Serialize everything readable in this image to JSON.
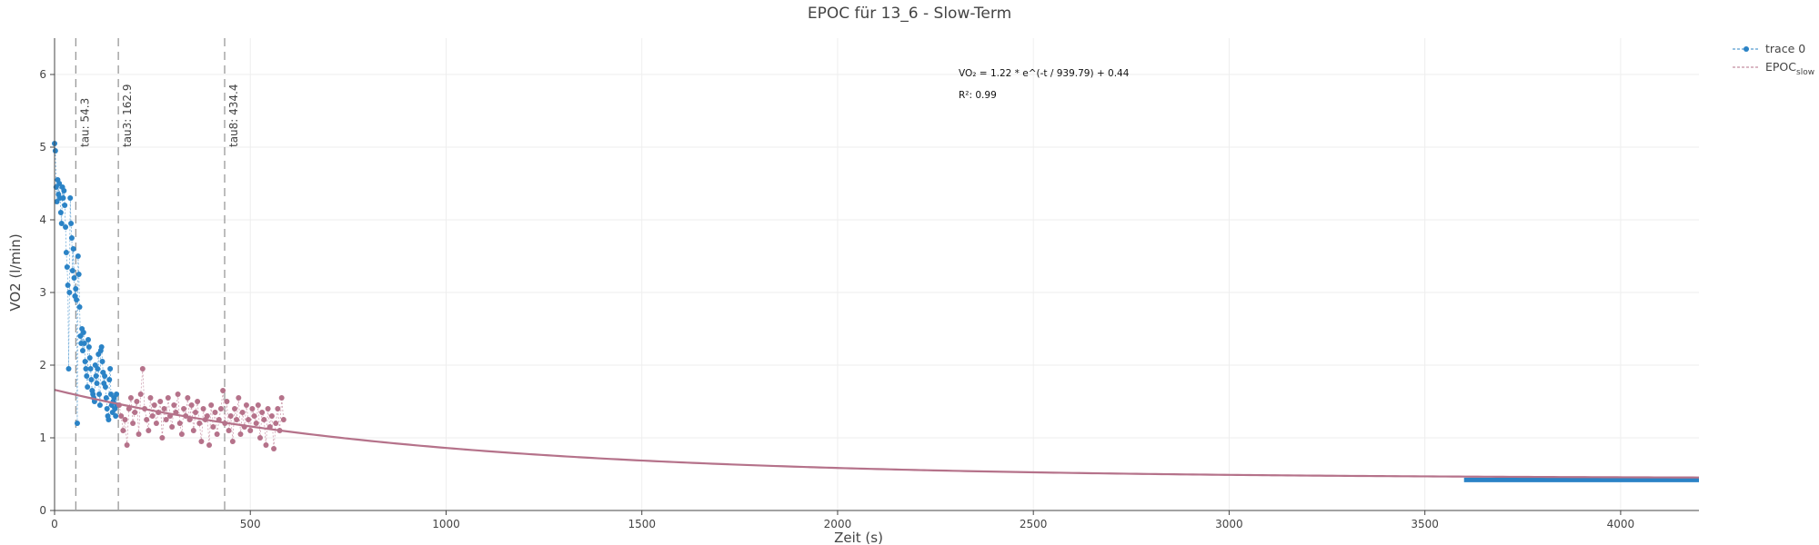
{
  "chart_data": {
    "type": "scatter",
    "title": "EPOC für 13_6 - Slow-Term",
    "xlabel": "Zeit (s)",
    "ylabel": "VO2 (l/min)",
    "xlim": [
      0,
      4200
    ],
    "ylim": [
      0,
      6.5
    ],
    "x_ticks": [
      0,
      500,
      1000,
      1500,
      2000,
      2500,
      3000,
      3500,
      4000
    ],
    "y_ticks": [
      0,
      1,
      2,
      3,
      4,
      5,
      6
    ],
    "grid": true,
    "legend_position": "top-right",
    "colors": {
      "blue": "#2b83c6",
      "pink": "#b5728a",
      "fit": "#b5728a",
      "vline": "#999999"
    },
    "fit": {
      "label": "EPOC",
      "label_sub": "slow",
      "equation": "VO₂ = 1.22 * e^(-t / 939.79) + 0.44",
      "r2": "R²: 0.99",
      "a": 1.22,
      "tau": 939.79,
      "c": 0.44
    },
    "vlines": [
      {
        "x": 54.3,
        "label": "tau: 54.3"
      },
      {
        "x": 162.9,
        "label": "tau3: 162.9"
      },
      {
        "x": 434.4,
        "label": "tau8: 434.4"
      }
    ],
    "series": [
      {
        "name": "trace 0",
        "color": "#2b83c6",
        "points": [
          [
            0,
            5.05
          ],
          [
            2,
            4.95
          ],
          [
            4,
            4.45
          ],
          [
            6,
            4.25
          ],
          [
            8,
            4.55
          ],
          [
            10,
            4.35
          ],
          [
            12,
            4.5
          ],
          [
            14,
            4.3
          ],
          [
            16,
            4.1
          ],
          [
            18,
            3.95
          ],
          [
            20,
            4.45
          ],
          [
            22,
            4.3
          ],
          [
            24,
            4.4
          ],
          [
            26,
            4.2
          ],
          [
            28,
            3.9
          ],
          [
            30,
            3.55
          ],
          [
            32,
            3.35
          ],
          [
            34,
            3.1
          ],
          [
            36,
            1.95
          ],
          [
            38,
            3.0
          ],
          [
            40,
            4.3
          ],
          [
            42,
            3.95
          ],
          [
            44,
            3.75
          ],
          [
            46,
            3.3
          ],
          [
            48,
            3.6
          ],
          [
            50,
            3.2
          ],
          [
            52,
            2.95
          ],
          [
            54,
            3.05
          ],
          [
            56,
            2.9
          ],
          [
            58,
            1.2
          ],
          [
            60,
            3.5
          ],
          [
            62,
            3.25
          ],
          [
            64,
            2.8
          ],
          [
            66,
            2.4
          ],
          [
            68,
            2.3
          ],
          [
            70,
            2.5
          ],
          [
            72,
            2.2
          ],
          [
            74,
            2.45
          ],
          [
            76,
            2.3
          ],
          [
            78,
            2.05
          ],
          [
            80,
            1.95
          ],
          [
            82,
            1.85
          ],
          [
            84,
            1.7
          ],
          [
            86,
            2.35
          ],
          [
            88,
            2.25
          ],
          [
            90,
            2.1
          ],
          [
            92,
            1.95
          ],
          [
            94,
            1.8
          ],
          [
            96,
            1.65
          ],
          [
            98,
            1.6
          ],
          [
            100,
            1.55
          ],
          [
            102,
            1.5
          ],
          [
            104,
            2.0
          ],
          [
            106,
            1.85
          ],
          [
            108,
            1.75
          ],
          [
            110,
            1.95
          ],
          [
            112,
            2.15
          ],
          [
            114,
            1.6
          ],
          [
            116,
            1.45
          ],
          [
            118,
            2.2
          ],
          [
            120,
            2.25
          ],
          [
            122,
            2.05
          ],
          [
            124,
            1.9
          ],
          [
            126,
            1.75
          ],
          [
            128,
            1.85
          ],
          [
            130,
            1.7
          ],
          [
            132,
            1.55
          ],
          [
            134,
            1.4
          ],
          [
            136,
            1.3
          ],
          [
            138,
            1.25
          ],
          [
            140,
            1.8
          ],
          [
            142,
            1.95
          ],
          [
            144,
            1.6
          ],
          [
            146,
            1.45
          ],
          [
            148,
            1.35
          ],
          [
            150,
            1.5
          ],
          [
            152,
            1.55
          ],
          [
            154,
            1.4
          ],
          [
            156,
            1.3
          ],
          [
            158,
            1.6
          ],
          [
            160,
            1.45
          ]
        ],
        "flat_segment": {
          "x_start": 3600,
          "x_end": 4200,
          "y": 0.42
        }
      },
      {
        "name": "EPOC_slow",
        "color": "#b5728a",
        "points": [
          [
            165,
            1.45
          ],
          [
            170,
            1.3
          ],
          [
            175,
            1.1
          ],
          [
            180,
            1.25
          ],
          [
            185,
            0.9
          ],
          [
            190,
            1.4
          ],
          [
            195,
            1.55
          ],
          [
            200,
            1.2
          ],
          [
            205,
            1.35
          ],
          [
            210,
            1.5
          ],
          [
            215,
            1.05
          ],
          [
            220,
            1.6
          ],
          [
            225,
            1.95
          ],
          [
            230,
            1.4
          ],
          [
            235,
            1.25
          ],
          [
            240,
            1.1
          ],
          [
            245,
            1.55
          ],
          [
            250,
            1.3
          ],
          [
            255,
            1.45
          ],
          [
            260,
            1.2
          ],
          [
            265,
            1.35
          ],
          [
            270,
            1.5
          ],
          [
            275,
            1.0
          ],
          [
            280,
            1.4
          ],
          [
            285,
            1.25
          ],
          [
            290,
            1.55
          ],
          [
            295,
            1.3
          ],
          [
            300,
            1.15
          ],
          [
            305,
            1.45
          ],
          [
            310,
            1.35
          ],
          [
            315,
            1.6
          ],
          [
            320,
            1.2
          ],
          [
            325,
            1.05
          ],
          [
            330,
            1.4
          ],
          [
            335,
            1.3
          ],
          [
            340,
            1.55
          ],
          [
            345,
            1.25
          ],
          [
            350,
            1.45
          ],
          [
            355,
            1.1
          ],
          [
            360,
            1.35
          ],
          [
            365,
            1.5
          ],
          [
            370,
            1.2
          ],
          [
            375,
            0.95
          ],
          [
            380,
            1.4
          ],
          [
            385,
            1.25
          ],
          [
            390,
            1.3
          ],
          [
            395,
            0.9
          ],
          [
            400,
            1.45
          ],
          [
            405,
            1.15
          ],
          [
            410,
            1.35
          ],
          [
            415,
            1.05
          ],
          [
            420,
            1.25
          ],
          [
            425,
            1.4
          ],
          [
            430,
            1.65
          ],
          [
            435,
            1.2
          ],
          [
            440,
            1.5
          ],
          [
            445,
            1.1
          ],
          [
            450,
            1.3
          ],
          [
            455,
            0.95
          ],
          [
            460,
            1.4
          ],
          [
            465,
            1.25
          ],
          [
            470,
            1.55
          ],
          [
            475,
            1.05
          ],
          [
            480,
            1.35
          ],
          [
            485,
            1.15
          ],
          [
            490,
            1.45
          ],
          [
            495,
            1.25
          ],
          [
            500,
            1.1
          ],
          [
            505,
            1.4
          ],
          [
            510,
            1.3
          ],
          [
            515,
            1.2
          ],
          [
            520,
            1.45
          ],
          [
            525,
            1.0
          ],
          [
            530,
            1.35
          ],
          [
            535,
            1.25
          ],
          [
            540,
            0.9
          ],
          [
            545,
            1.4
          ],
          [
            550,
            1.15
          ],
          [
            555,
            1.3
          ],
          [
            560,
            0.85
          ],
          [
            565,
            1.2
          ],
          [
            570,
            1.4
          ],
          [
            575,
            1.1
          ],
          [
            580,
            1.55
          ],
          [
            585,
            1.25
          ]
        ]
      }
    ]
  }
}
